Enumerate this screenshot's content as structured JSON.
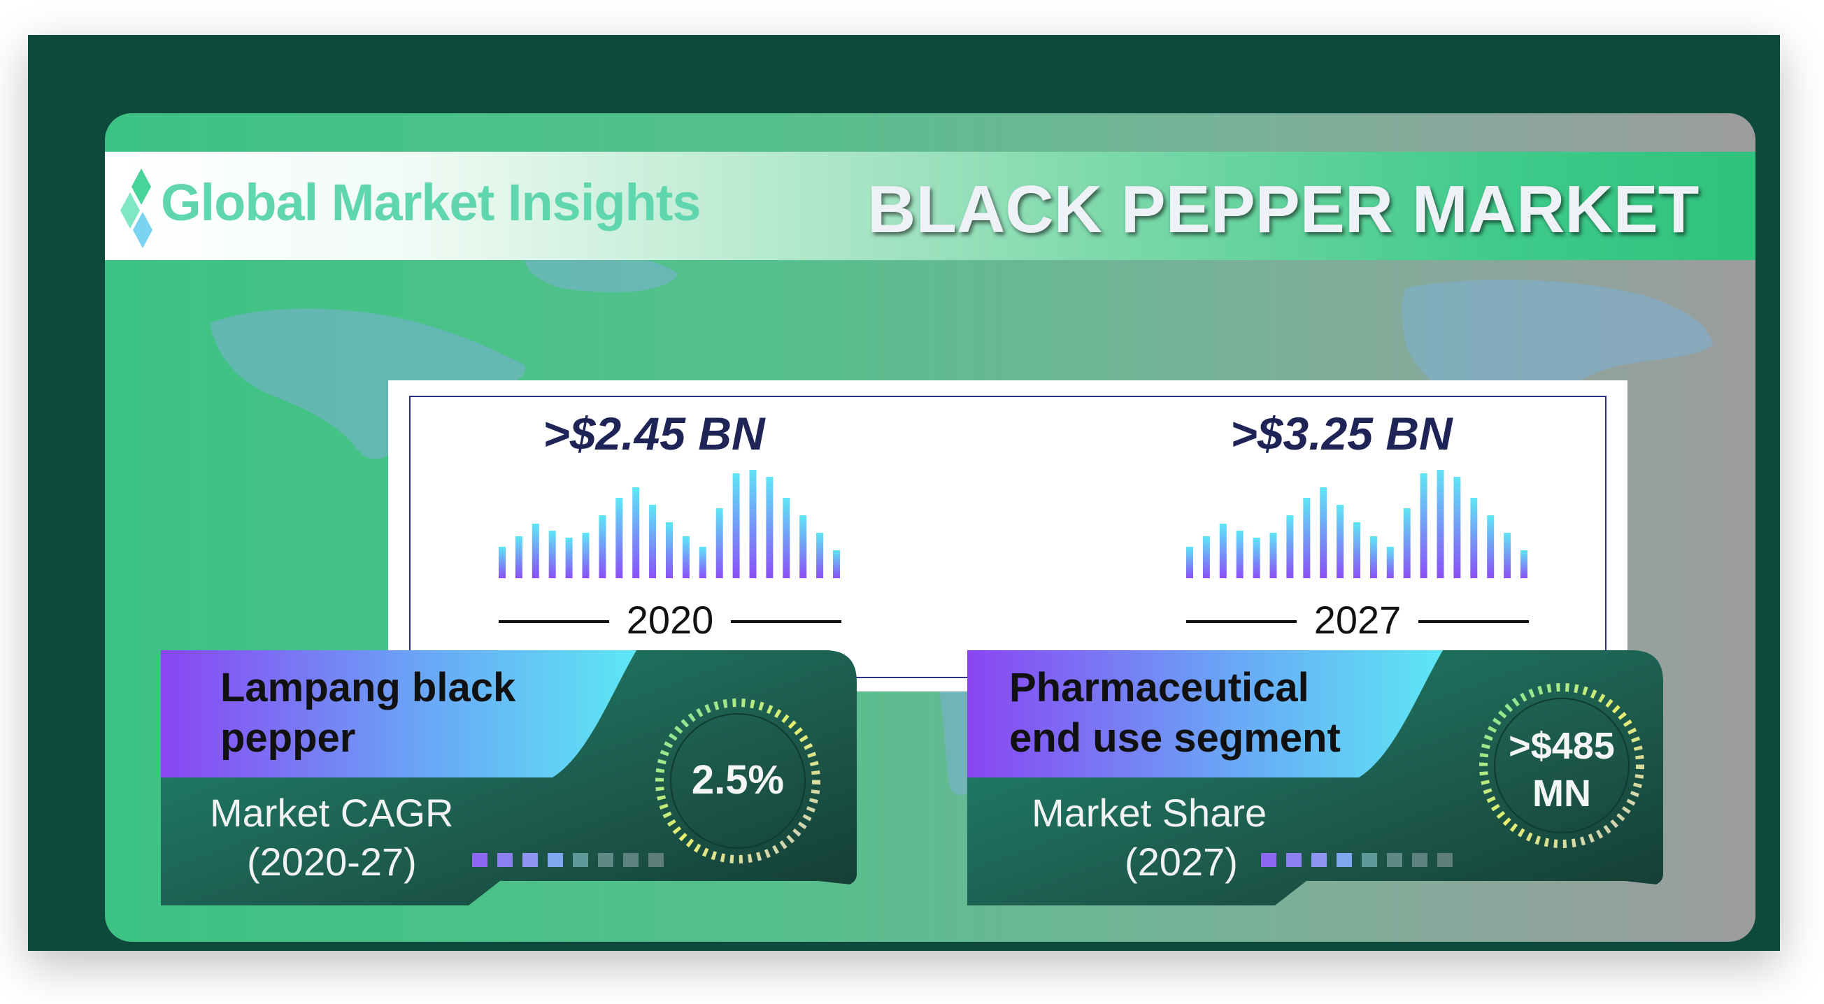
{
  "header": {
    "brand": "Global Market Insights",
    "title": "BLACK PEPPER MARKET"
  },
  "market_size": [
    {
      "value": ">$2.45 BN",
      "year": "2020"
    },
    {
      "value": ">$3.25 BN",
      "year": "2027"
    }
  ],
  "segments": [
    {
      "title_line1": "Lampang black",
      "title_line2": "pepper",
      "metric_value": "2.5%",
      "metric_label_line1": "Market CAGR",
      "metric_label_line2": "(2020-27)"
    },
    {
      "title_line1": "Pharmaceutical",
      "title_line2": "end use segment",
      "metric_value_line1": ">$485",
      "metric_value_line2": "MN",
      "metric_label_line1": "Market Share",
      "metric_label_line2": "(2027)"
    }
  ],
  "colors": {
    "frame": "#0e4a3b",
    "accent_green": "#3cc383",
    "title_navy": "#1f2457",
    "bar_top": "#5fe6f5",
    "bar_bottom": "#8a4ff7"
  }
}
